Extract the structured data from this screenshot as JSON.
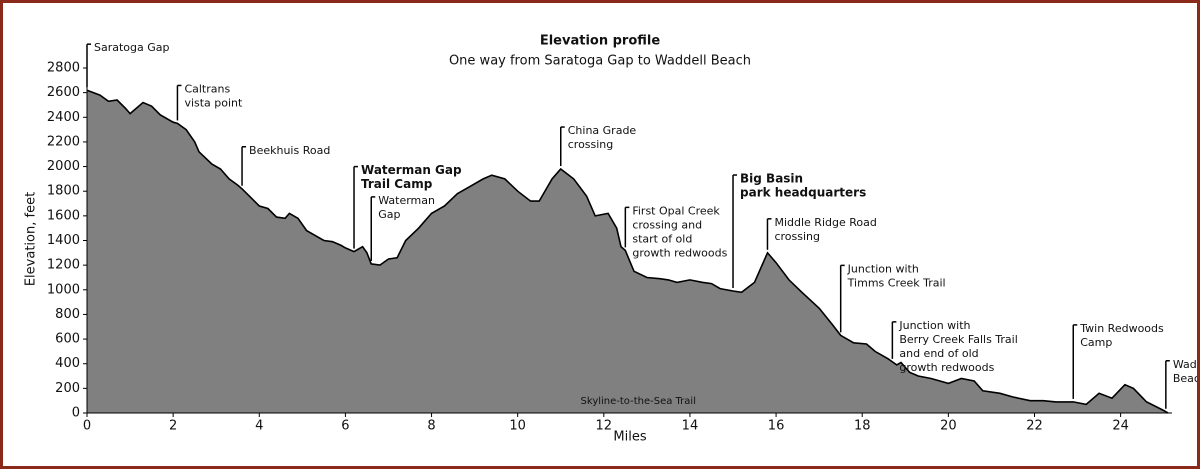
{
  "chart_data": {
    "type": "area",
    "title": "Elevation profile",
    "subtitle": "One way from Saratoga Gap to Waddell Beach",
    "x_label": "Miles",
    "y_label": "Elevation, feet",
    "area_label": "Skyline-to-the-Sea Trail",
    "color": "#808080",
    "line_color": "#000000",
    "grid": false,
    "x": [
      0,
      0.3,
      0.5,
      0.7,
      0.9,
      1.0,
      1.3,
      1.5,
      1.7,
      2.0,
      2.1,
      2.3,
      2.5,
      2.6,
      2.9,
      3.1,
      3.3,
      3.5,
      3.6,
      3.8,
      4.0,
      4.2,
      4.4,
      4.6,
      4.7,
      4.9,
      5.1,
      5.3,
      5.5,
      5.7,
      5.9,
      6.0,
      6.2,
      6.4,
      6.5,
      6.6,
      6.8,
      7.0,
      7.2,
      7.4,
      7.7,
      8.0,
      8.3,
      8.6,
      8.9,
      9.2,
      9.4,
      9.7,
      10.0,
      10.3,
      10.5,
      10.8,
      11.0,
      11.3,
      11.6,
      11.8,
      12.1,
      12.3,
      12.4,
      12.5,
      12.7,
      13.0,
      13.3,
      13.5,
      13.7,
      14.0,
      14.3,
      14.5,
      14.7,
      15.0,
      15.2,
      15.5,
      15.8,
      16.0,
      16.3,
      16.6,
      17.0,
      17.3,
      17.5,
      17.8,
      18.1,
      18.3,
      18.6,
      18.8,
      18.9,
      19.1,
      19.3,
      19.6,
      20.0,
      20.3,
      20.6,
      20.8,
      21.2,
      21.5,
      21.9,
      22.2,
      22.5,
      22.9,
      23.2,
      23.5,
      23.8,
      24.1,
      24.3,
      24.6,
      25.0,
      25.1
    ],
    "values": [
      2620,
      2580,
      2530,
      2540,
      2470,
      2430,
      2520,
      2490,
      2420,
      2360,
      2350,
      2300,
      2200,
      2120,
      2020,
      1980,
      1900,
      1850,
      1820,
      1750,
      1680,
      1660,
      1590,
      1580,
      1620,
      1580,
      1480,
      1440,
      1400,
      1390,
      1360,
      1340,
      1310,
      1350,
      1300,
      1210,
      1200,
      1250,
      1260,
      1400,
      1500,
      1620,
      1680,
      1780,
      1840,
      1900,
      1930,
      1900,
      1800,
      1720,
      1720,
      1900,
      1980,
      1900,
      1760,
      1600,
      1620,
      1500,
      1350,
      1320,
      1150,
      1100,
      1090,
      1080,
      1060,
      1080,
      1060,
      1050,
      1010,
      990,
      980,
      1060,
      1300,
      1220,
      1080,
      980,
      850,
      720,
      630,
      570,
      560,
      500,
      440,
      390,
      410,
      330,
      300,
      280,
      240,
      280,
      260,
      180,
      160,
      130,
      100,
      100,
      90,
      90,
      70,
      160,
      120,
      230,
      200,
      90,
      20,
      0
    ],
    "xlim": [
      0,
      25.1
    ],
    "ylim": [
      0,
      2800
    ],
    "xticks": [
      0,
      2,
      4,
      6,
      8,
      10,
      12,
      14,
      16,
      18,
      20,
      22,
      24
    ],
    "yticks": [
      0,
      200,
      400,
      600,
      800,
      1000,
      1200,
      1400,
      1600,
      1800,
      2000,
      2200,
      2400,
      2600,
      2800
    ],
    "annotations": [
      {
        "x": 0,
        "lines": [
          "Saratoga Gap"
        ],
        "bold": false
      },
      {
        "x": 2.1,
        "lines": [
          "Caltrans",
          "vista point"
        ],
        "bold": false
      },
      {
        "x": 3.6,
        "lines": [
          "Beekhuis Road"
        ],
        "bold": false
      },
      {
        "x": 6.2,
        "lines": [
          "Waterman Gap",
          "Trail Camp"
        ],
        "bold": true
      },
      {
        "x": 6.6,
        "lines": [
          "Waterman",
          "Gap"
        ],
        "bold": false
      },
      {
        "x": 11.0,
        "lines": [
          "China Grade",
          "crossing"
        ],
        "bold": false
      },
      {
        "x": 12.5,
        "lines": [
          "First Opal Creek",
          "crossing and",
          "start of old",
          "growth redwoods"
        ],
        "bold": false
      },
      {
        "x": 15.0,
        "lines": [
          "Big Basin",
          "park headquarters"
        ],
        "bold": true
      },
      {
        "x": 15.8,
        "lines": [
          "Middle Ridge Road",
          "crossing"
        ],
        "bold": false
      },
      {
        "x": 17.5,
        "lines": [
          "Junction with",
          "Timms Creek Trail"
        ],
        "bold": false
      },
      {
        "x": 18.7,
        "lines": [
          "Junction with",
          "Berry Creek Falls Trail",
          "and end of old",
          "growth redwoods"
        ],
        "bold": false
      },
      {
        "x": 22.9,
        "lines": [
          "Twin Redwoods",
          "Camp"
        ],
        "bold": false
      },
      {
        "x": 25.05,
        "lines": [
          "Waddell",
          "Beach"
        ],
        "bold": false
      }
    ]
  }
}
